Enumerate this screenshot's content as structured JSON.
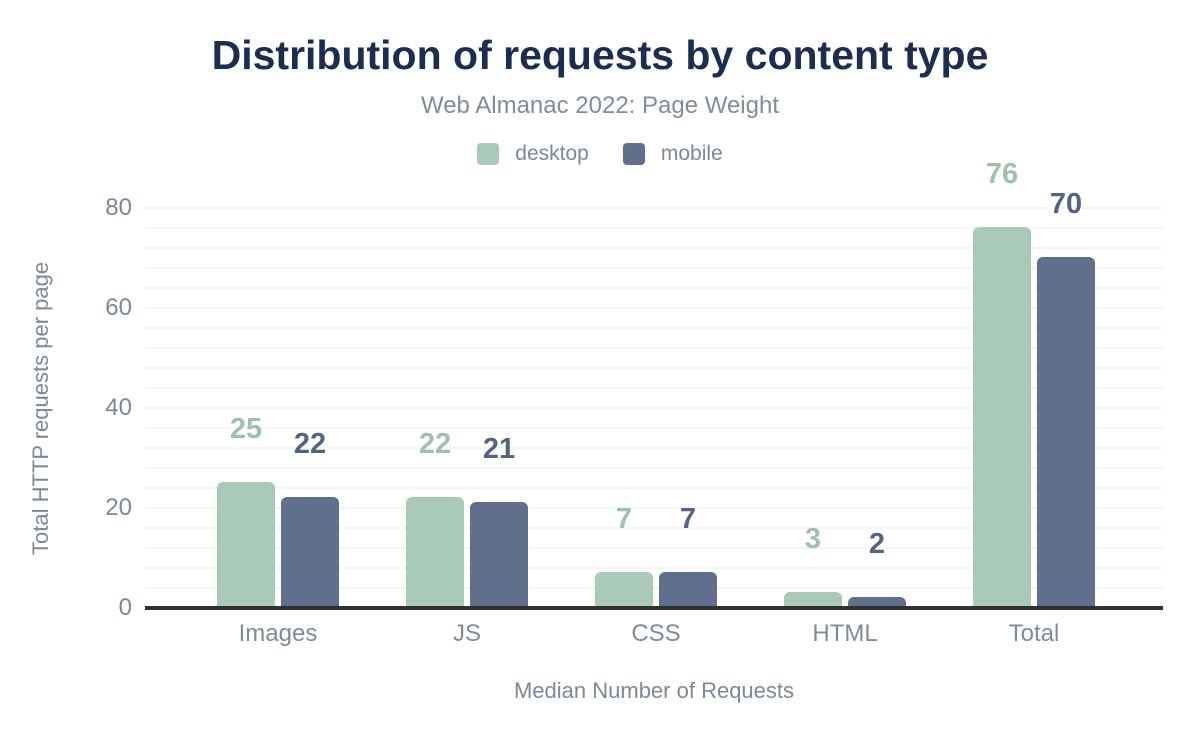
{
  "header": {
    "title": "Distribution of requests by content type",
    "subtitle": "Web Almanac 2022: Page Weight"
  },
  "colors": {
    "title": "#1b2d50",
    "subtitle_text": "#828c96",
    "axis_text": "#7d8795",
    "category_text": "#808b96",
    "gridline": "#f5f5f6",
    "axis_line": "#303030",
    "desktop": "#a9cab8",
    "mobile": "#60708c",
    "desktop_value_label": "#9fc0ae",
    "mobile_value_label": "#536380"
  },
  "chart_data": {
    "type": "bar",
    "title": "Distribution of requests by content type",
    "subtitle": "Web Almanac 2022: Page Weight",
    "categories": [
      "Images",
      "JS",
      "CSS",
      "HTML",
      "Total"
    ],
    "series": [
      {
        "name": "desktop",
        "color": "#a9cab8",
        "label_color": "#9fc0ae",
        "values": [
          25,
          22,
          7,
          3,
          76
        ]
      },
      {
        "name": "mobile",
        "color": "#60708c",
        "label_color": "#536380",
        "values": [
          22,
          21,
          7,
          2,
          70
        ]
      }
    ],
    "xlabel": "Median Number of Requests",
    "ylabel": "Total HTTP requests per page",
    "yticks": [
      0,
      20,
      40,
      60,
      80
    ],
    "ylim": [
      0,
      80
    ],
    "grid": "horizontal, faint line every 4 units",
    "legend_position": "top center",
    "value_labels": "above each bar, colored per series"
  }
}
